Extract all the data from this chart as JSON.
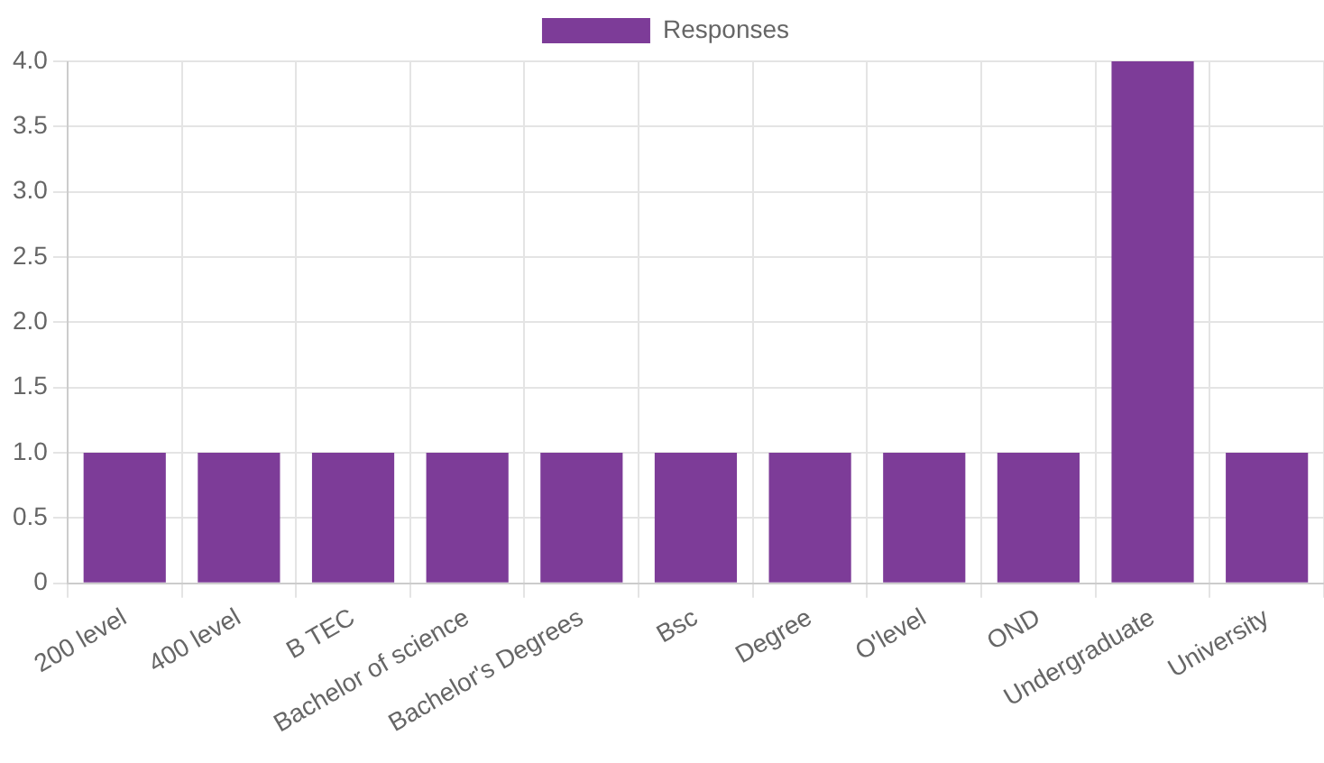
{
  "chart_data": {
    "type": "bar",
    "categories": [
      "200 level",
      "400 level",
      "B TEC",
      "Bachelor of science",
      "Bachelor's Degrees",
      "Bsc",
      "Degree",
      "O'level",
      "OND",
      "Undergraduate",
      "University"
    ],
    "series": [
      {
        "name": "Responses",
        "color": "#7d3c98",
        "values": [
          1,
          1,
          1,
          1,
          1,
          1,
          1,
          1,
          1,
          4,
          1
        ]
      }
    ],
    "ylim": [
      0,
      4
    ],
    "yticks": [
      0,
      {
        "value": 0.5,
        "label": "0.5"
      },
      {
        "value": 1,
        "label": "1.0"
      },
      {
        "value": 1.5,
        "label": "1.5"
      },
      {
        "value": 2,
        "label": "2.0"
      },
      {
        "value": 2.5,
        "label": "2.5"
      },
      {
        "value": 3,
        "label": "3.0"
      },
      {
        "value": 3.5,
        "label": "3.5"
      },
      {
        "value": 4,
        "label": "4.0"
      }
    ],
    "grid": true,
    "legend": "top"
  }
}
